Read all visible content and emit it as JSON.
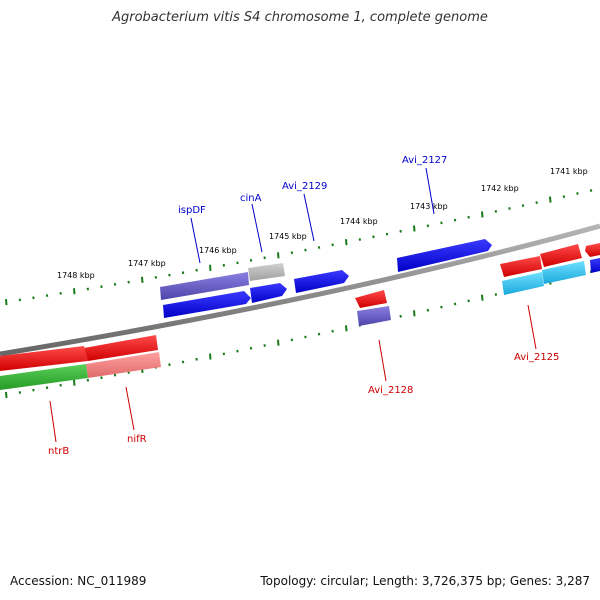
{
  "title": "Agrobacterium vitis S4 chromosome 1, complete genome",
  "footer": {
    "accession": "Accession: NC_011989",
    "summary": "Topology: circular; Length: 3,726,375 bp; Genes: 3,287"
  },
  "colors": {
    "backbone": "#888888",
    "tick": "#1a7a1a",
    "forward_label": "#0000cc",
    "reverse_label": "#cc0000"
  },
  "ruler": {
    "labels": [
      "1741 kbp",
      "1742 kbp",
      "1743 kbp",
      "1744 kbp",
      "1745 kbp",
      "1746 kbp",
      "1747 kbp",
      "1748 kbp"
    ]
  },
  "gene_labels": {
    "forward": [
      "Avi_2127",
      "Avi_2129",
      "cinA",
      "ispDF"
    ],
    "reverse": [
      "Avi_2125",
      "Avi_2128",
      "nifR",
      "ntrB"
    ]
  }
}
